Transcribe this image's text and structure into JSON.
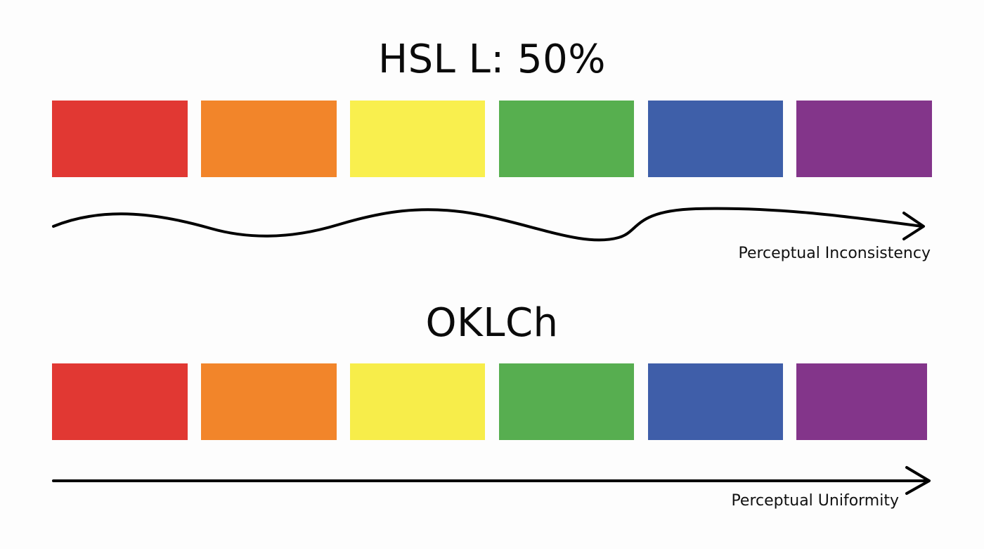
{
  "sections": [
    {
      "title": "HSL L: 50%",
      "caption": "Perceptual Inconsistency",
      "swatches": [
        "#e13833",
        "#f2852a",
        "#f9ef4e",
        "#57af4f",
        "#3e5fa9",
        "#83358a"
      ]
    },
    {
      "title": "OKLCh",
      "caption": "Perceptual Uniformity",
      "swatches": [
        "#e13833",
        "#f2852a",
        "#f7ed4a",
        "#57ae50",
        "#3f5ea9",
        "#83358a"
      ]
    }
  ],
  "colors": {
    "text": "#0a0a0a",
    "arrow": "#000000",
    "background": "#fdfdfd"
  }
}
